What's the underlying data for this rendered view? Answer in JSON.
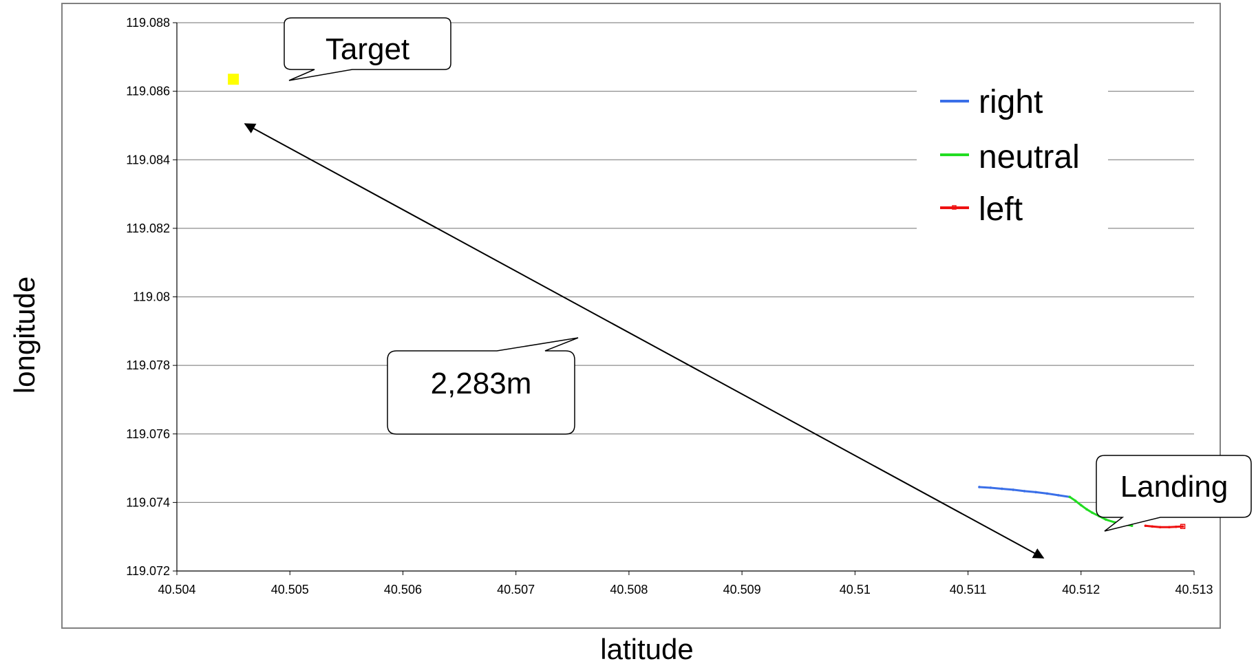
{
  "chart_data": {
    "type": "line",
    "title": "",
    "xlabel": "latitude",
    "ylabel": "longitude",
    "xlim": [
      40.504,
      40.513
    ],
    "ylim": [
      119.072,
      119.088
    ],
    "x_ticks": [
      "40.504",
      "40.505",
      "40.506",
      "40.507",
      "40.508",
      "40.509",
      "40.51",
      "40.511",
      "40.512",
      "40.513"
    ],
    "y_ticks": [
      "119.072",
      "119.074",
      "119.076",
      "119.078",
      "119.08",
      "119.082",
      "119.084",
      "119.086",
      "119.088"
    ],
    "grid": "horizontal",
    "legend": {
      "position": "top-right",
      "entries": [
        "right",
        "neutral",
        "left"
      ]
    },
    "series": [
      {
        "name": "right",
        "color": "#3a6fe8",
        "points": [
          [
            40.5111,
            119.07445
          ],
          [
            40.5112,
            119.07443
          ],
          [
            40.5113,
            119.0744
          ],
          [
            40.5114,
            119.07437
          ],
          [
            40.5115,
            119.07433
          ],
          [
            40.5116,
            119.0743
          ],
          [
            40.5117,
            119.07426
          ],
          [
            40.5118,
            119.07421
          ],
          [
            40.5119,
            119.07416
          ]
        ]
      },
      {
        "name": "neutral",
        "color": "#22dd22",
        "points": [
          [
            40.5119,
            119.07416
          ],
          [
            40.51195,
            119.07405
          ],
          [
            40.512,
            119.07392
          ],
          [
            40.51205,
            119.0738
          ],
          [
            40.5121,
            119.0737
          ],
          [
            40.51216,
            119.0736
          ],
          [
            40.51222,
            119.0735
          ],
          [
            40.5123,
            119.07342
          ],
          [
            40.51238,
            119.07336
          ],
          [
            40.51245,
            119.07332
          ]
        ]
      },
      {
        "name": "left",
        "color": "#ee1111",
        "points": [
          [
            40.51257,
            119.07332
          ],
          [
            40.51263,
            119.0733
          ],
          [
            40.5127,
            119.07328
          ],
          [
            40.51278,
            119.07328
          ],
          [
            40.51284,
            119.07329
          ],
          [
            40.5129,
            119.0733
          ]
        ]
      }
    ],
    "target_point": {
      "color": "#ffff00",
      "x": 40.5045,
      "y": 119.08635
    },
    "annotations": {
      "target_label": "Target",
      "landing_label": "Landing",
      "distance_label": "2,283m"
    }
  }
}
